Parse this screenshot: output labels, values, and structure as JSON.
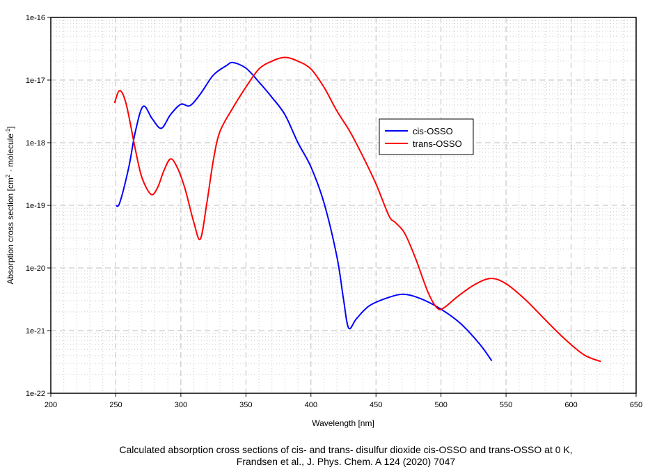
{
  "chart_data": {
    "type": "line",
    "xlabel": "Wavelength [nm]",
    "ylabel_parts": [
      "Absorption cross section [cm",
      "2",
      " · molecule",
      "-1",
      "]"
    ],
    "xlim": [
      200,
      650
    ],
    "ylim": [
      1e-22,
      1e-16
    ],
    "yscale": "log",
    "grid": true,
    "legend_position": "upper-right-center",
    "x_ticks": [
      "200",
      "250",
      "300",
      "350",
      "400",
      "450",
      "500",
      "550",
      "600",
      "650"
    ],
    "y_ticks": [
      "1e-22",
      "1e-21",
      "1e-20",
      "1e-19",
      "1e-18",
      "1e-17",
      "1e-16"
    ],
    "caption": [
      "Calculated absorption cross sections of cis- and trans- disulfur dioxide cis-OSSO and trans-OSSO at 0 K,",
      "Frandsen et al., J. Phys. Chem. A 124 (2020) 7047"
    ],
    "series": [
      {
        "name": "cis-OSSO",
        "color": "#0000ff",
        "x": [
          250,
          253,
          260,
          265,
          271,
          278,
          285,
          292,
          300,
          307,
          315,
          325,
          335,
          340,
          350,
          360,
          370,
          380,
          390,
          400,
          410,
          420,
          425,
          429,
          435,
          445,
          460,
          472,
          485,
          500,
          515,
          530,
          539
        ],
        "y": [
          1e-19,
          1.1e-19,
          4.1e-19,
          1.5e-18,
          3.8e-18,
          2.4e-18,
          1.7e-18,
          2.8e-18,
          4.1e-18,
          3.9e-18,
          6e-18,
          1.2e-17,
          1.7e-17,
          1.9e-17,
          1.55e-17,
          9.3e-18,
          5.3e-18,
          2.8e-18,
          1e-18,
          4.1e-19,
          1.1e-19,
          1.5e-20,
          3.2e-21,
          1.1e-21,
          1.55e-21,
          2.5e-21,
          3.4e-21,
          3.8e-21,
          3.2e-21,
          2.2e-21,
          1.3e-21,
          6e-22,
          3.3e-22
        ]
      },
      {
        "name": "trans-OSSO",
        "color": "#ff0000",
        "x": [
          249,
          253,
          258,
          265,
          270,
          277,
          282,
          287,
          292,
          297,
          303,
          310,
          315,
          320,
          325,
          330,
          340,
          350,
          360,
          370,
          380,
          390,
          400,
          410,
          420,
          430,
          440,
          450,
          460,
          465,
          472,
          480,
          490,
          497,
          502,
          512,
          525,
          538,
          550,
          565,
          580,
          595,
          610,
          623
        ],
        "y": [
          4.3e-18,
          6.8e-18,
          4.1e-18,
          7.8e-19,
          2.8e-19,
          1.5e-19,
          1.9e-19,
          3.6e-19,
          5.5e-19,
          4.1e-19,
          1.9e-19,
          5.3e-20,
          2.9e-20,
          1.1e-19,
          5.3e-19,
          1.5e-18,
          3.6e-18,
          7.7e-18,
          1.5e-17,
          2e-17,
          2.3e-17,
          2e-17,
          1.5e-17,
          7.7e-18,
          3.2e-18,
          1.5e-18,
          6e-19,
          2.2e-19,
          6.8e-20,
          5.3e-20,
          3.6e-20,
          1.5e-20,
          4.1e-21,
          2.3e-21,
          2.3e-21,
          3.4e-21,
          5.3e-21,
          6.8e-21,
          5.6e-21,
          3.1e-21,
          1.5e-21,
          7.4e-22,
          4.1e-22,
          3.2e-22
        ]
      }
    ]
  }
}
